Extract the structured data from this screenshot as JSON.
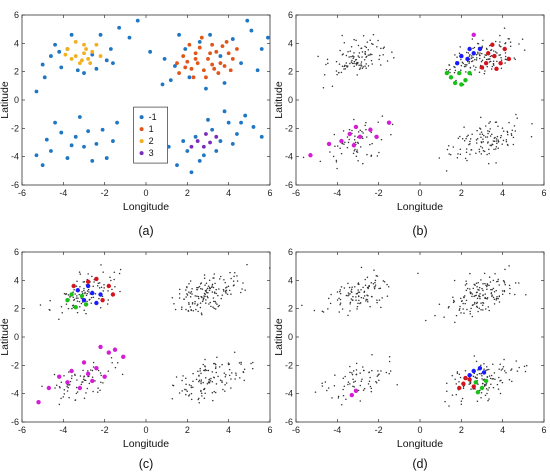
{
  "chart_data": [
    {
      "type": "scatter",
      "caption": "(a)",
      "xlabel": "Longitude",
      "ylabel": "Latitude",
      "xlim": [
        -6,
        6
      ],
      "ylim": [
        -6,
        6
      ],
      "xticks": [
        "-6",
        "-4",
        "-2",
        "0",
        "2",
        "4",
        "6"
      ],
      "yticks": [
        "6",
        "4",
        "2",
        "0",
        "-2",
        "-4",
        "-6"
      ],
      "grid": false,
      "legend": {
        "position": "center",
        "entries": [
          "-1",
          "1",
          "2",
          "3"
        ]
      },
      "background_style": "colored",
      "series": [
        {
          "name": "-1",
          "color": "#1f77c4",
          "points": [
            [
              -5,
              2.5
            ],
            [
              -4.6,
              3.1
            ],
            [
              -4.1,
              2.3
            ],
            [
              -3.8,
              3.6
            ],
            [
              -4.9,
              1.6
            ],
            [
              -3.3,
              2.1
            ],
            [
              -2.6,
              3.2
            ],
            [
              -2.2,
              4.6
            ],
            [
              -1.7,
              3.6
            ],
            [
              -1.3,
              5.1
            ],
            [
              -0.8,
              4.4
            ],
            [
              -3.0,
              1.9
            ],
            [
              -4.4,
              3.9
            ],
            [
              -5.3,
              0.6
            ],
            [
              -0.4,
              5.6
            ],
            [
              -1.9,
              2.8
            ],
            [
              -3.6,
              4.6
            ],
            [
              -2.4,
              2.2
            ],
            [
              -4.2,
              3.4
            ],
            [
              -1.6,
              2.6
            ],
            [
              -5,
              -4.6
            ],
            [
              -4.6,
              -3.6
            ],
            [
              -4.1,
              -2.3
            ],
            [
              -3.8,
              -4.1
            ],
            [
              -3.4,
              -2.6
            ],
            [
              -3.0,
              -3.3
            ],
            [
              -2.6,
              -4.3
            ],
            [
              -2.1,
              -2.1
            ],
            [
              -1.6,
              -2.9
            ],
            [
              -4.4,
              -1.6
            ],
            [
              -3.2,
              -1.2
            ],
            [
              -2.4,
              -3.1
            ],
            [
              -1.9,
              -4.1
            ],
            [
              -5.3,
              -3.9
            ],
            [
              -2.8,
              -2.2
            ],
            [
              -3.6,
              -3.2
            ],
            [
              -4.8,
              -2.8
            ],
            [
              -1.4,
              -1.6
            ],
            [
              1.5,
              -4.6
            ],
            [
              2.0,
              -3.6
            ],
            [
              2.4,
              -2.6
            ],
            [
              2.8,
              -3.9
            ],
            [
              3.2,
              -2.1
            ],
            [
              3.6,
              -2.9
            ],
            [
              4.0,
              -1.6
            ],
            [
              4.4,
              -2.4
            ],
            [
              4.8,
              -1.1
            ],
            [
              5.2,
              -1.9
            ],
            [
              1.8,
              -2.9
            ],
            [
              2.6,
              -4.3
            ],
            [
              3.4,
              -3.6
            ],
            [
              4.2,
              -3.1
            ],
            [
              5.6,
              -2.6
            ],
            [
              1.1,
              -3.3
            ],
            [
              3.0,
              -1.4
            ],
            [
              3.8,
              -0.8
            ],
            [
              4.6,
              -1.6
            ],
            [
              2.2,
              -5.1
            ],
            [
              1.4,
              2.4
            ],
            [
              1.9,
              3.6
            ],
            [
              2.6,
              4.1
            ],
            [
              3.1,
              4.6
            ],
            [
              3.6,
              3.1
            ],
            [
              4.2,
              4.3
            ],
            [
              4.6,
              2.6
            ],
            [
              5.1,
              4.9
            ],
            [
              5.6,
              3.6
            ],
            [
              1.2,
              1.4
            ],
            [
              2.1,
              1.6
            ],
            [
              2.9,
              0.8
            ],
            [
              3.8,
              1.2
            ],
            [
              4.9,
              5.6
            ],
            [
              0.9,
              2.9
            ],
            [
              5.4,
              2.1
            ],
            [
              1.6,
              4.6
            ],
            [
              0.2,
              3.4
            ],
            [
              0.8,
              1.1
            ],
            [
              5.9,
              4.4
            ]
          ]
        },
        {
          "name": "1",
          "color": "#e0561a",
          "points": [
            [
              1.6,
              1.9
            ],
            [
              2.0,
              2.7
            ],
            [
              2.4,
              3.3
            ],
            [
              2.8,
              2.1
            ],
            [
              3.2,
              3.9
            ],
            [
              3.6,
              2.6
            ],
            [
              4.0,
              3.3
            ],
            [
              1.8,
              3.1
            ],
            [
              2.2,
              2.2
            ],
            [
              2.6,
              3.7
            ],
            [
              3.0,
              2.9
            ],
            [
              3.4,
              3.4
            ],
            [
              3.8,
              2.4
            ],
            [
              4.2,
              2.9
            ],
            [
              2.1,
              3.9
            ],
            [
              2.9,
              1.6
            ],
            [
              3.3,
              2.2
            ],
            [
              3.7,
              3.8
            ],
            [
              1.5,
              2.6
            ],
            [
              2.5,
              2.6
            ],
            [
              3.1,
              3.3
            ],
            [
              4.4,
              3.6
            ],
            [
              2.3,
              1.6
            ],
            [
              3.5,
              1.9
            ],
            [
              2.7,
              4.4
            ],
            [
              3.9,
              4.1
            ],
            [
              1.9,
              2.3
            ],
            [
              4.1,
              2.1
            ],
            [
              2.4,
              2.9
            ],
            [
              3.2,
              2.5
            ]
          ]
        },
        {
          "name": "2",
          "color": "#f2b01e",
          "points": [
            [
              -3.8,
              3.6
            ],
            [
              -3.4,
              3.1
            ],
            [
              -3.0,
              3.9
            ],
            [
              -2.6,
              3.4
            ],
            [
              -3.2,
              2.6
            ],
            [
              -2.8,
              2.9
            ],
            [
              -3.6,
              2.9
            ],
            [
              -2.4,
              3.9
            ],
            [
              -3.0,
              3.3
            ],
            [
              -2.2,
              3.1
            ],
            [
              -3.4,
              4.1
            ],
            [
              -2.7,
              2.6
            ],
            [
              -3.9,
              3.2
            ],
            [
              -2.9,
              3.6
            ],
            [
              -3.1,
              2.8
            ]
          ]
        },
        {
          "name": "3",
          "color": "#7a2bb8",
          "points": [
            [
              2.5,
              -2.9
            ],
            [
              2.8,
              -3.3
            ],
            [
              3.1,
              -3.0
            ],
            [
              3.4,
              -2.6
            ],
            [
              2.2,
              -3.3
            ],
            [
              2.9,
              -2.4
            ]
          ]
        }
      ]
    },
    {
      "type": "scatter",
      "caption": "(b)",
      "xlabel": "Longitude",
      "ylabel": "Latitude",
      "xlim": [
        -6,
        6
      ],
      "ylim": [
        -6,
        6
      ],
      "xticks": [
        "-6",
        "-4",
        "-2",
        "0",
        "2",
        "4",
        "6"
      ],
      "yticks": [
        "6",
        "4",
        "2",
        "0",
        "-2",
        "-4",
        "-6"
      ],
      "grid": false,
      "background_style": "dots",
      "series": [
        {
          "name": "blue",
          "color": "#1a1aff",
          "points": [
            [
              2.3,
              2.9
            ],
            [
              2.6,
              3.3
            ],
            [
              2.0,
              3.1
            ],
            [
              2.9,
              3.6
            ],
            [
              2.4,
              3.6
            ],
            [
              1.8,
              2.6
            ]
          ]
        },
        {
          "name": "red",
          "color": "#d4141d",
          "points": [
            [
              3.2,
              2.6
            ],
            [
              3.6,
              3.1
            ],
            [
              3.9,
              2.6
            ],
            [
              3.3,
              3.3
            ],
            [
              4.1,
              3.6
            ],
            [
              3.0,
              2.3
            ],
            [
              3.7,
              2.2
            ],
            [
              4.3,
              2.9
            ],
            [
              3.5,
              3.9
            ]
          ]
        },
        {
          "name": "green",
          "color": "#18c018",
          "points": [
            [
              1.5,
              1.6
            ],
            [
              1.9,
              1.9
            ],
            [
              2.2,
              1.4
            ],
            [
              1.7,
              1.2
            ],
            [
              2.4,
              1.9
            ],
            [
              1.3,
              1.9
            ],
            [
              2.0,
              1.1
            ]
          ]
        },
        {
          "name": "magenta",
          "color": "#d41ed4",
          "points": [
            [
              -3.4,
              -2.4
            ],
            [
              -2.9,
              -2.6
            ],
            [
              -3.8,
              -2.9
            ],
            [
              -2.4,
              -2.1
            ],
            [
              -3.1,
              -1.9
            ],
            [
              -4.4,
              -3.1
            ],
            [
              -2.1,
              -2.6
            ],
            [
              -3.2,
              -3.2
            ],
            [
              -1.5,
              -1.6
            ],
            [
              -5.3,
              -3.9
            ],
            [
              2.6,
              4.6
            ]
          ]
        }
      ]
    },
    {
      "type": "scatter",
      "caption": "(c)",
      "xlabel": "Longitude",
      "ylabel": "Latitude",
      "xlim": [
        -6,
        6
      ],
      "ylim": [
        -6,
        6
      ],
      "xticks": [
        "-6",
        "-4",
        "-2",
        "0",
        "2",
        "4",
        "6"
      ],
      "yticks": [
        "6",
        "4",
        "2",
        "0",
        "-2",
        "-4",
        "-6"
      ],
      "grid": false,
      "background_style": "dots",
      "series": [
        {
          "name": "blue",
          "color": "#1a1aff",
          "points": [
            [
              -3.0,
              2.6
            ],
            [
              -2.6,
              3.1
            ],
            [
              -3.3,
              3.3
            ],
            [
              -2.4,
              2.4
            ],
            [
              -2.8,
              3.6
            ],
            [
              -2.2,
              3.0
            ]
          ]
        },
        {
          "name": "red",
          "color": "#d4141d",
          "points": [
            [
              -2.8,
              3.9
            ],
            [
              -2.4,
              4.1
            ],
            [
              -1.8,
              3.6
            ],
            [
              -2.1,
              2.6
            ],
            [
              -3.5,
              3.6
            ],
            [
              -1.6,
              3.0
            ]
          ]
        },
        {
          "name": "green",
          "color": "#18c018",
          "points": [
            [
              -3.8,
              2.6
            ],
            [
              -3.4,
              2.1
            ],
            [
              -3.1,
              2.9
            ],
            [
              -3.6,
              3.0
            ],
            [
              -2.9,
              2.3
            ]
          ]
        },
        {
          "name": "magenta",
          "color": "#d41ed4",
          "points": [
            [
              -3.0,
              -1.8
            ],
            [
              -2.4,
              -2.2
            ],
            [
              -1.8,
              -1.1
            ],
            [
              -1.1,
              -1.4
            ],
            [
              -2.2,
              -0.7
            ],
            [
              -3.8,
              -3.2
            ],
            [
              -4.2,
              -2.8
            ],
            [
              -3.2,
              -3.6
            ],
            [
              -2.6,
              -3.1
            ],
            [
              -4.7,
              -3.6
            ],
            [
              -5.2,
              -4.6
            ],
            [
              -3.6,
              -2.4
            ],
            [
              -2.0,
              -2.8
            ],
            [
              -2.8,
              -2.6
            ],
            [
              -1.5,
              -0.9
            ]
          ]
        }
      ]
    },
    {
      "type": "scatter",
      "caption": "(d)",
      "xlabel": "Longitude",
      "ylabel": "Latitude",
      "xlim": [
        -6,
        6
      ],
      "ylim": [
        -6,
        6
      ],
      "xticks": [
        "-6",
        "-4",
        "-2",
        "0",
        "2",
        "4",
        "6"
      ],
      "yticks": [
        "6",
        "4",
        "2",
        "0",
        "-2",
        "-4",
        "-6"
      ],
      "grid": false,
      "background_style": "dots",
      "series": [
        {
          "name": "blue",
          "color": "#1a1aff",
          "points": [
            [
              2.6,
              -2.4
            ],
            [
              2.9,
              -2.2
            ],
            [
              2.4,
              -2.7
            ],
            [
              3.1,
              -2.5
            ]
          ]
        },
        {
          "name": "red",
          "color": "#d4141d",
          "points": [
            [
              2.1,
              -3.3
            ],
            [
              2.4,
              -3.0
            ],
            [
              1.9,
              -3.6
            ],
            [
              2.6,
              -3.5
            ],
            [
              2.2,
              -2.9
            ]
          ]
        },
        {
          "name": "green",
          "color": "#18c018",
          "points": [
            [
              2.7,
              -3.2
            ],
            [
              3.0,
              -3.6
            ],
            [
              2.8,
              -3.9
            ],
            [
              3.2,
              -3.1
            ]
          ]
        },
        {
          "name": "magenta",
          "color": "#d41ed4",
          "points": [
            [
              -3.3,
              -4.1
            ],
            [
              -3.1,
              -3.8
            ]
          ]
        }
      ]
    }
  ]
}
